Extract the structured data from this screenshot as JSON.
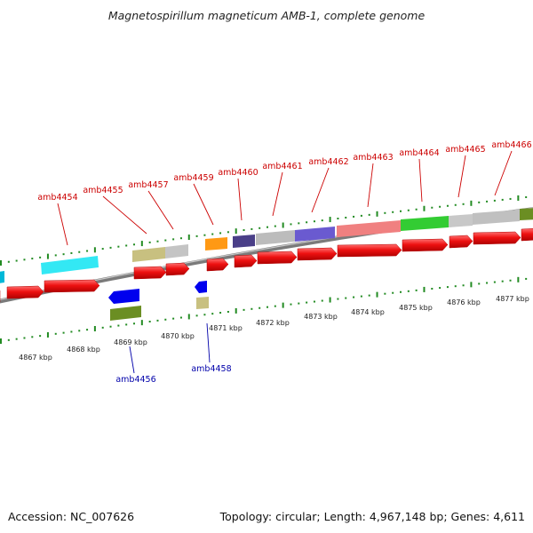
{
  "title": "Magnetospirillum magneticum AMB-1, complete genome",
  "footer": {
    "accession": "Accession: NC_007626",
    "summary": "Topology: circular; Length: 4,967,148 bp; Genes: 4,611"
  },
  "colors": {
    "forward_label": "#cc0000",
    "reverse_label": "#0000aa",
    "arrow": "#ee1111",
    "backbone": "#808080",
    "tick": "#228b22"
  },
  "kbp_labels": [
    "4867 kbp",
    "4868 kbp",
    "4869 kbp",
    "4870 kbp",
    "4871 kbp",
    "4872 kbp",
    "4873 kbp",
    "4874 kbp",
    "4875 kbp",
    "4876 kbp",
    "4877 kbp"
  ],
  "forward_genes": [
    "amb4454",
    "amb4455",
    "amb4457",
    "amb4459",
    "amb4460",
    "amb4461",
    "amb4462",
    "amb4463",
    "amb4464",
    "amb4465",
    "amb4466"
  ],
  "reverse_genes": [
    "amb4456",
    "amb4458"
  ],
  "cog_bar_colors": [
    "cyan",
    "dark khaki",
    "silver",
    "orange",
    "dark slate blue",
    "silver",
    "slate blue",
    "light coral",
    "lime green",
    "silver",
    "silver",
    "olive drab",
    "blue",
    "dark khaki",
    "olive drab"
  ]
}
